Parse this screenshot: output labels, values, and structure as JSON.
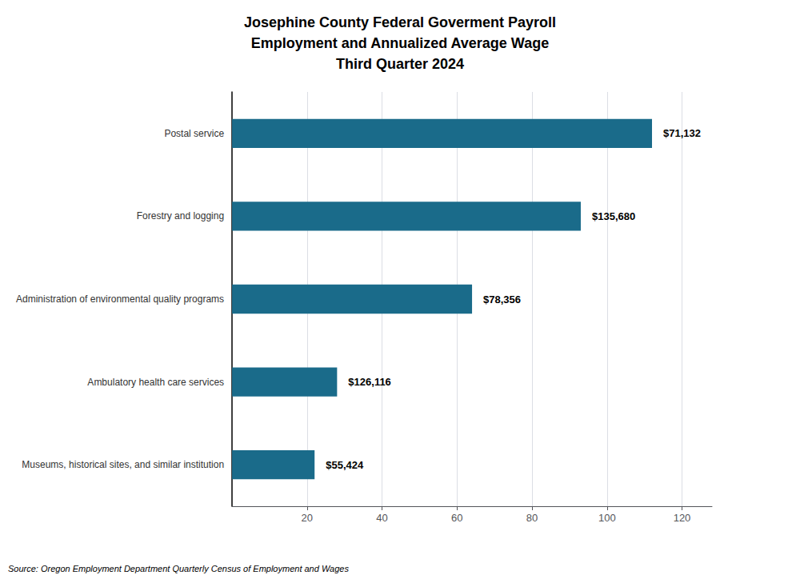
{
  "chart_data": {
    "type": "bar",
    "title": "Josephine County Federal Goverment Payroll\nEmployment and Annualized Average Wage\nThird Quarter 2024",
    "orientation": "horizontal",
    "categories": [
      "Museums, historical sites, and similar institution",
      "Ambulatory health care services",
      "Administration of environmental quality programs",
      "Forestry and logging",
      "Postal service"
    ],
    "values": [
      22,
      28,
      64,
      93,
      112
    ],
    "annotations": [
      "$55,424",
      "$126,116",
      "$78,356",
      "$135,680",
      "$71,132"
    ],
    "color": "#1a6b8a",
    "xlim": [
      0,
      128
    ],
    "xticks": [
      20,
      40,
      60,
      80,
      100,
      120
    ],
    "grid": true,
    "source": "Source: Oregon Employment Department Quarterly Census of Employment and Wages"
  }
}
